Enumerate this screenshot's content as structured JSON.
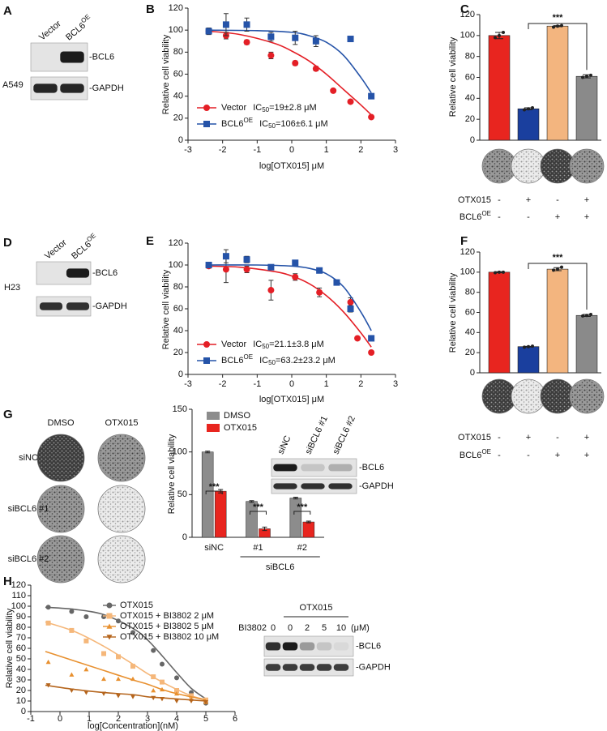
{
  "panel_labels": [
    "A",
    "B",
    "C",
    "D",
    "E",
    "F",
    "G",
    "H"
  ],
  "blots": [
    {
      "cell_line": "A549",
      "lanes": [
        {
          "text": "Vector"
        },
        {
          "text": "BCL6",
          "sup": "OE"
        }
      ],
      "bands": [
        "-BCL6",
        "-GAPDH"
      ]
    },
    {
      "cell_line": "H23",
      "lanes": [
        {
          "text": "Vector"
        },
        {
          "text": "BCL6",
          "sup": "OE"
        }
      ],
      "bands": [
        "-BCL6",
        "-GAPDH"
      ]
    },
    {
      "lanes": [
        {
          "text": "siNC"
        },
        {
          "text": "siBCL6 #1"
        },
        {
          "text": "siBCL6 #2"
        }
      ],
      "bands": [
        "-BCL6",
        "-GAPDH"
      ]
    },
    {
      "lane_title": "BI3802",
      "group": "OTX015",
      "lane_unit": "(μM)",
      "lanes": [
        {
          "text": "0"
        },
        {
          "text": "0"
        },
        {
          "text": "2"
        },
        {
          "text": "5"
        },
        {
          "text": "10"
        }
      ],
      "bands": [
        "-BCL6",
        "-GAPDH"
      ]
    }
  ],
  "colony_grid": {
    "columns": [
      "DMSO",
      "OTX015"
    ],
    "rows": [
      "siNC",
      "siBCL6 #1",
      "siBCL6 #2"
    ]
  },
  "chart_data": [
    {
      "type": "line",
      "y_label": "Relative cell viability",
      "x_label": "log[OTX015] μM",
      "xlim": [
        -3,
        3
      ],
      "xticks": [
        -3,
        -2,
        -1,
        0,
        1,
        2,
        3
      ],
      "ylim": [
        0,
        120
      ],
      "yticks": [
        0,
        20,
        40,
        60,
        80,
        100,
        120
      ],
      "series": [
        {
          "name": "Vector",
          "color": "#e41f26",
          "marker": "circle",
          "ic50": {
            "prefix": "IC",
            "sub": "50",
            "text": "=19±2.8 μM"
          },
          "x": [
            -2.4,
            -1.9,
            -1.3,
            -0.6,
            0.1,
            0.7,
            1.2,
            1.7,
            2.3
          ],
          "values": [
            99,
            95,
            89,
            77,
            70,
            65,
            45,
            35,
            21
          ],
          "errors": [
            2,
            3,
            2,
            3,
            2,
            2,
            1,
            1,
            1
          ],
          "fit": {
            "x": [
              -2.4,
              -1.5,
              -0.5,
              0,
              0.5,
              1,
              1.5,
              2,
              2.3
            ],
            "values": [
              99,
              96,
              88,
              81,
              72,
              60,
              46,
              32,
              23
            ]
          }
        },
        {
          "name": "BCL6",
          "name_sup": "OE",
          "color": "#2553a8",
          "marker": "square",
          "ic50": {
            "prefix": "IC",
            "sub": "50",
            "text": "=106±6.1 μM"
          },
          "x": [
            -2.4,
            -1.9,
            -1.3,
            -0.6,
            0.1,
            0.7,
            1.7,
            2.3
          ],
          "values": [
            99,
            105,
            105,
            94,
            93,
            90,
            92,
            40
          ],
          "errors": [
            3,
            10,
            6,
            4,
            6,
            5,
            1,
            1
          ],
          "fit": {
            "x": [
              -2.4,
              -1,
              0,
              0.5,
              1,
              1.5,
              2,
              2.3
            ],
            "values": [
              100,
              99.5,
              98,
              95,
              89,
              77,
              57,
              43
            ]
          }
        }
      ]
    },
    {
      "type": "bar",
      "y_label": "Relative cell viability",
      "ylim": [
        0,
        120
      ],
      "yticks": [
        0,
        20,
        40,
        60,
        80,
        100,
        120
      ],
      "categories": [
        null,
        null,
        null,
        null
      ],
      "values": [
        100,
        30,
        109,
        61
      ],
      "errors": [
        3,
        1,
        0.5,
        1.5
      ],
      "points": [
        [
          98,
          100,
          103
        ],
        [
          29,
          30,
          31
        ],
        [
          108,
          109,
          109.5
        ],
        [
          60,
          61,
          62
        ]
      ],
      "colors": [
        "#e8251f",
        "#1a3f9e",
        "#f3b57f",
        "#8a8a8a"
      ],
      "annotation": "***",
      "conditions": [
        {
          "label": "OTX015",
          "values": [
            "-",
            "+",
            "-",
            "+"
          ]
        },
        {
          "label": "BCL6",
          "sup": "OE",
          "values": [
            "-",
            "-",
            "+",
            "+"
          ]
        }
      ]
    },
    {
      "type": "line",
      "y_label": "Relative cell viability",
      "x_label": "log[OTX015] μM",
      "xlim": [
        -3,
        3
      ],
      "xticks": [
        -3,
        -2,
        -1,
        0,
        1,
        2,
        3
      ],
      "ylim": [
        0,
        120
      ],
      "yticks": [
        0,
        20,
        40,
        60,
        80,
        100,
        120
      ],
      "series": [
        {
          "name": "Vector",
          "color": "#e41f26",
          "marker": "circle",
          "ic50": {
            "prefix": "IC",
            "sub": "50",
            "text": "=21.1±3.8 μM"
          },
          "x": [
            -2.4,
            -1.9,
            -1.3,
            -0.6,
            0.1,
            0.8,
            1.7,
            1.9,
            2.3
          ],
          "values": [
            99,
            96,
            96,
            77,
            89,
            75,
            66,
            33,
            20
          ],
          "errors": [
            2,
            12,
            3,
            9,
            3,
            4,
            4,
            1,
            1
          ],
          "fit": {
            "x": [
              -2.4,
              -1.5,
              -0.5,
              0,
              0.5,
              1,
              1.5,
              2,
              2.3
            ],
            "values": [
              99,
              98,
              94,
              90,
              83,
              72,
              57,
              38,
              25
            ]
          }
        },
        {
          "name": "BCL6",
          "name_sup": "OE",
          "color": "#2553a8",
          "marker": "square",
          "ic50": {
            "prefix": "IC",
            "sub": "50",
            "text": "=63.2±23.2 μM"
          },
          "x": [
            -2.4,
            -1.9,
            -1.3,
            -0.6,
            0.1,
            0.8,
            1.3,
            1.7,
            2.3
          ],
          "values": [
            100,
            108,
            105,
            98,
            102,
            95,
            84,
            60,
            33
          ],
          "errors": [
            2,
            6,
            3,
            2,
            1,
            2,
            2,
            3,
            1
          ],
          "fit": {
            "x": [
              -2.4,
              -1,
              0,
              0.5,
              1,
              1.5,
              2,
              2.3
            ],
            "values": [
              100,
              100,
              99,
              97,
              92,
              80,
              57,
              40
            ]
          }
        }
      ]
    },
    {
      "type": "bar",
      "y_label": "Relative cell viability",
      "ylim": [
        0,
        120
      ],
      "yticks": [
        0,
        20,
        40,
        60,
        80,
        100,
        120
      ],
      "categories": [
        null,
        null,
        null,
        null
      ],
      "values": [
        100,
        26,
        103,
        57
      ],
      "errors": [
        0.5,
        0.3,
        1.5,
        1
      ],
      "points": [
        [
          99.5,
          100,
          100
        ],
        [
          25.5,
          26,
          26.5
        ],
        [
          102,
          103,
          105
        ],
        [
          56.5,
          57,
          58
        ]
      ],
      "colors": [
        "#e8251f",
        "#1a3f9e",
        "#f3b57f",
        "#8a8a8a"
      ],
      "annotation": "***",
      "conditions": [
        {
          "label": "OTX015",
          "values": [
            "-",
            "+",
            "-",
            "+"
          ]
        },
        {
          "label": "BCL6",
          "sup": "OE",
          "values": [
            "-",
            "-",
            "+",
            "+"
          ]
        }
      ]
    },
    {
      "type": "grouped_bar",
      "y_label": "Relative cell viability",
      "ylim": [
        0,
        150
      ],
      "yticks": [
        0,
        50,
        100,
        150
      ],
      "categories": [
        "siNC",
        "#1",
        "#2"
      ],
      "group_label": "siBCL6",
      "annotations": [
        "***",
        "***",
        "***"
      ],
      "legend": "top-left",
      "series": [
        {
          "name": "DMSO",
          "color": "#8c8c8c",
          "values": [
            100,
            42,
            46
          ],
          "errors": [
            1,
            1,
            1
          ]
        },
        {
          "name": "OTX015",
          "color": "#e8251f",
          "values": [
            54,
            10,
            18
          ],
          "errors": [
            2,
            2,
            1
          ]
        }
      ]
    },
    {
      "type": "line",
      "y_label": "Relative cell viability",
      "x_label": "log[Concentration](nM)",
      "xlim": [
        -1,
        6
      ],
      "xticks": [
        -1,
        0,
        1,
        2,
        3,
        4,
        5,
        6
      ],
      "ylim": [
        0,
        120
      ],
      "yticks": [
        0,
        10,
        20,
        30,
        40,
        50,
        60,
        70,
        80,
        90,
        100,
        110,
        120
      ],
      "series": [
        {
          "name": "OTX015",
          "color": "#666666",
          "marker": "circle",
          "x": [
            -0.4,
            0.4,
            0.9,
            1.5,
            2,
            2.5,
            3.2,
            3.5,
            4,
            4.5,
            5
          ],
          "values": [
            99,
            95,
            90,
            90,
            86,
            75,
            58,
            45,
            32,
            18,
            8
          ],
          "fit": {
            "x": [
              -0.5,
              0.5,
              1.5,
              2.5,
              3,
              3.5,
              4,
              4.5,
              5
            ],
            "values": [
              99,
              97,
              92,
              79,
              68,
              53,
              37,
              22,
              12
            ]
          }
        },
        {
          "name": "OTX015 + BI3802  2 μM",
          "color": "#f5b77a",
          "marker": "square",
          "x": [
            -0.4,
            0.4,
            0.9,
            1.5,
            2,
            2.5,
            3.2,
            3.5,
            4,
            4.5,
            5
          ],
          "values": [
            84,
            77,
            67,
            55,
            52,
            43,
            33,
            28,
            20,
            15,
            11
          ],
          "fit": {
            "x": [
              -0.5,
              0.5,
              1.5,
              2.5,
              3,
              3.5,
              4,
              4.5,
              5
            ],
            "values": [
              85,
              76,
              62,
              45,
              36,
              28,
              21,
              15,
              11
            ]
          }
        },
        {
          "name": "OTX015 + BI3802  5 μM",
          "color": "#e8902f",
          "marker": "triangle",
          "x": [
            -0.4,
            0.4,
            0.9,
            1.5,
            2,
            2.5,
            3.2,
            3.5,
            4,
            4.5,
            5
          ],
          "values": [
            47,
            35,
            40,
            31,
            31,
            31,
            20,
            21,
            17,
            12,
            9
          ],
          "fit": {
            "x": [
              -0.5,
              0.5,
              1.5,
              2.5,
              3,
              3.5,
              4,
              4.5,
              5
            ],
            "values": [
              57,
              48,
              39,
              30,
              26,
              21,
              17,
              14,
              11
            ]
          }
        },
        {
          "name": "OTX015 + BI3802  10 μM",
          "color": "#b5651d",
          "marker": "triangle-down",
          "x": [
            -0.4,
            0.4,
            0.9,
            1.5,
            2,
            2.5,
            3.2,
            3.5,
            4,
            4.5,
            5
          ],
          "values": [
            25,
            20,
            18,
            17,
            15,
            14,
            13,
            12,
            10,
            10,
            9
          ],
          "fit": {
            "x": [
              -0.5,
              0.5,
              1.5,
              2.5,
              3,
              3.5,
              4,
              4.5,
              5
            ],
            "values": [
              25,
              21,
              18,
              16,
              14,
              13,
              12,
              11,
              10
            ]
          }
        }
      ]
    }
  ]
}
